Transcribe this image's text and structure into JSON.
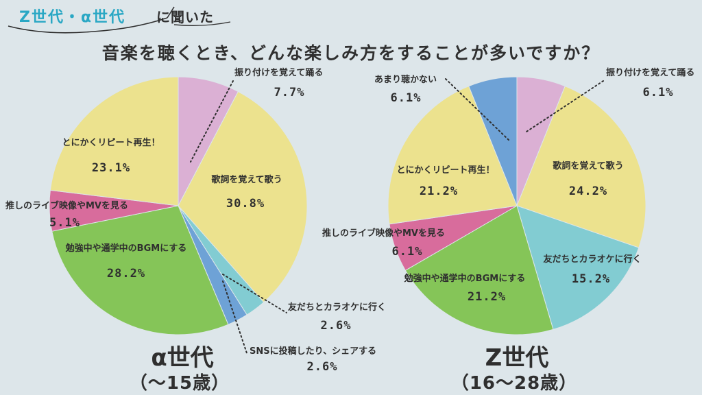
{
  "header": {
    "tag_highlight": "Z世代・α世代",
    "tag_rest": "に聞いた",
    "question": "音楽を聴くとき、どんな楽しみ方をすることが多いですか？"
  },
  "colors": {
    "background": "#dde6ea",
    "accent": "#29a7c4",
    "dance": "#dbb0d4",
    "sing": "#ece28e",
    "karaoke": "#82ccd2",
    "sns": "#6ea2d6",
    "bgm": "#85c558",
    "live": "#d86c9c",
    "repeat": "#ece28e",
    "rarely": "#6ea2d6"
  },
  "chart_data": [
    {
      "type": "pie",
      "title": "α世代",
      "subtitle": "（〜15歳）",
      "slices": [
        {
          "label": "振り付けを覚えて踊る",
          "value": 7.7,
          "value_text": "7.7%",
          "color_key": "dance"
        },
        {
          "label": "歌詞を覚えて歌う",
          "value": 30.8,
          "value_text": "30.8%",
          "color_key": "sing"
        },
        {
          "label": "友だちとカラオケに行く",
          "value": 2.6,
          "value_text": "2.6%",
          "color_key": "karaoke"
        },
        {
          "label": "SNSに投稿したり、シェアする",
          "value": 2.6,
          "value_text": "2.6%",
          "color_key": "sns"
        },
        {
          "label": "勉強中や通学中のBGMにする",
          "value": 28.2,
          "value_text": "28.2%",
          "color_key": "bgm"
        },
        {
          "label": "推しのライブ映像やMVを見る",
          "value": 5.1,
          "value_text": "5.1%",
          "color_key": "live"
        },
        {
          "label": "とにかくリピート再生！",
          "value": 23.1,
          "value_text": "23.1%",
          "color_key": "repeat"
        }
      ]
    },
    {
      "type": "pie",
      "title": "Z世代",
      "subtitle": "（16〜28歳）",
      "slices": [
        {
          "label": "振り付けを覚えて踊る",
          "value": 6.1,
          "value_text": "6.1%",
          "color_key": "dance"
        },
        {
          "label": "歌詞を覚えて歌う",
          "value": 24.2,
          "value_text": "24.2%",
          "color_key": "sing"
        },
        {
          "label": "友だちとカラオケに行く",
          "value": 15.2,
          "value_text": "15.2%",
          "color_key": "karaoke"
        },
        {
          "label": "勉強中や通学中のBGMにする",
          "value": 21.2,
          "value_text": "21.2%",
          "color_key": "bgm"
        },
        {
          "label": "推しのライブ映像やMVを見る",
          "value": 6.1,
          "value_text": "6.1%",
          "color_key": "live"
        },
        {
          "label": "とにかくリピート再生！",
          "value": 21.2,
          "value_text": "21.2%",
          "color_key": "repeat"
        },
        {
          "label": "あまり聴かない",
          "value": 6.1,
          "value_text": "6.1%",
          "color_key": "rarely"
        }
      ]
    }
  ]
}
